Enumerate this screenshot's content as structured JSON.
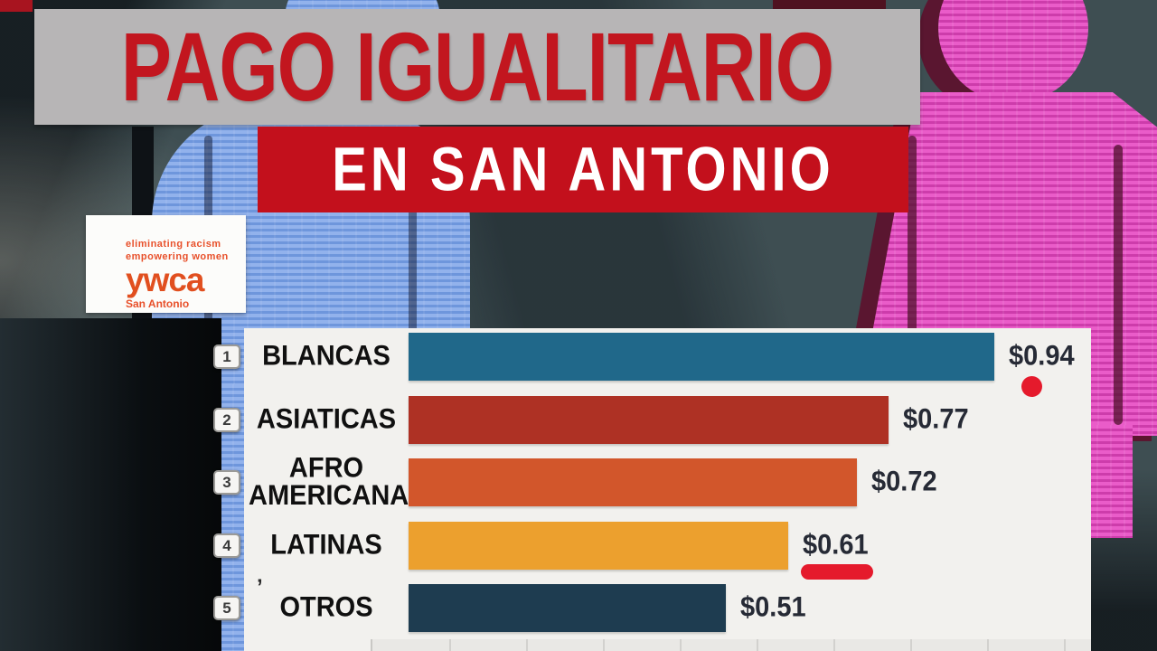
{
  "header": {
    "title": "PAGO IGUALITARIO",
    "subtitle": "EN SAN ANTONIO"
  },
  "logo": {
    "tagline_line1": "eliminating racism",
    "tagline_line2": "empowering women",
    "brand": "ywca",
    "location": "San Antonio"
  },
  "chart_data": {
    "type": "bar",
    "orientation": "horizontal",
    "title": "PAGO IGUALITARIO EN SAN ANTONIO",
    "categories": [
      "BLANCAS",
      "ASIATICAS",
      "AFRO AMERICANAS",
      "LATINAS",
      "OTROS"
    ],
    "values": [
      0.94,
      0.77,
      0.72,
      0.61,
      0.51
    ],
    "value_labels": [
      "$0.94",
      "$0.77",
      "$0.72",
      "$0.61",
      "$0.51"
    ],
    "rank_labels": [
      "1",
      "2",
      "3",
      "4",
      "5"
    ],
    "bar_colors": [
      "#20688a",
      "#ae3124",
      "#d2562b",
      "#eca02e",
      "#1e3c50"
    ],
    "markers": [
      "red-dot",
      null,
      null,
      "red-underline",
      null
    ],
    "xlim": [
      0,
      1
    ],
    "grid": false,
    "tick_labels_visible": false
  },
  "decor": {
    "artifact_mark": "’"
  },
  "colors": {
    "accent_red": "#e51a2c",
    "panel": "#f2f1ee",
    "banner_grey": "#b7b5b6",
    "banner_red": "#c3101c",
    "title_red": "#c2161f",
    "logo_orange": "#e8502a",
    "figure_blue": "#7fa3e4",
    "figure_pink": "#e055c5"
  }
}
